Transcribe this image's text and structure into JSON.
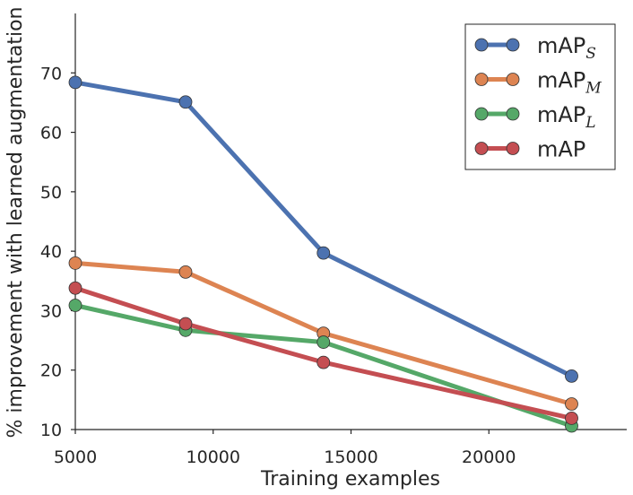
{
  "chart_data": {
    "type": "line",
    "title": "",
    "xlabel": "Training examples",
    "ylabel": "% improvement with learned augmentation",
    "xlim": [
      5000,
      25000
    ],
    "ylim": [
      10,
      80
    ],
    "xticks": [
      5000,
      10000,
      15000,
      20000
    ],
    "yticks": [
      10,
      20,
      30,
      40,
      50,
      60,
      70
    ],
    "grid": false,
    "legend_position": "top-right",
    "x": [
      5000,
      9000,
      14000,
      23000
    ],
    "series": [
      {
        "name": "mAP",
        "subscript": "S",
        "color": "#4c72b0",
        "values": [
          68.4,
          65.1,
          39.7,
          19.0
        ]
      },
      {
        "name": "mAP",
        "subscript": "M",
        "color": "#dd8452",
        "values": [
          38.0,
          36.5,
          26.2,
          14.3
        ]
      },
      {
        "name": "mAP",
        "subscript": "L",
        "color": "#55a868",
        "values": [
          30.9,
          26.7,
          24.7,
          10.6
        ]
      },
      {
        "name": "mAP",
        "subscript": "",
        "color": "#c44e52",
        "values": [
          33.8,
          27.8,
          21.3,
          11.9
        ]
      }
    ]
  }
}
